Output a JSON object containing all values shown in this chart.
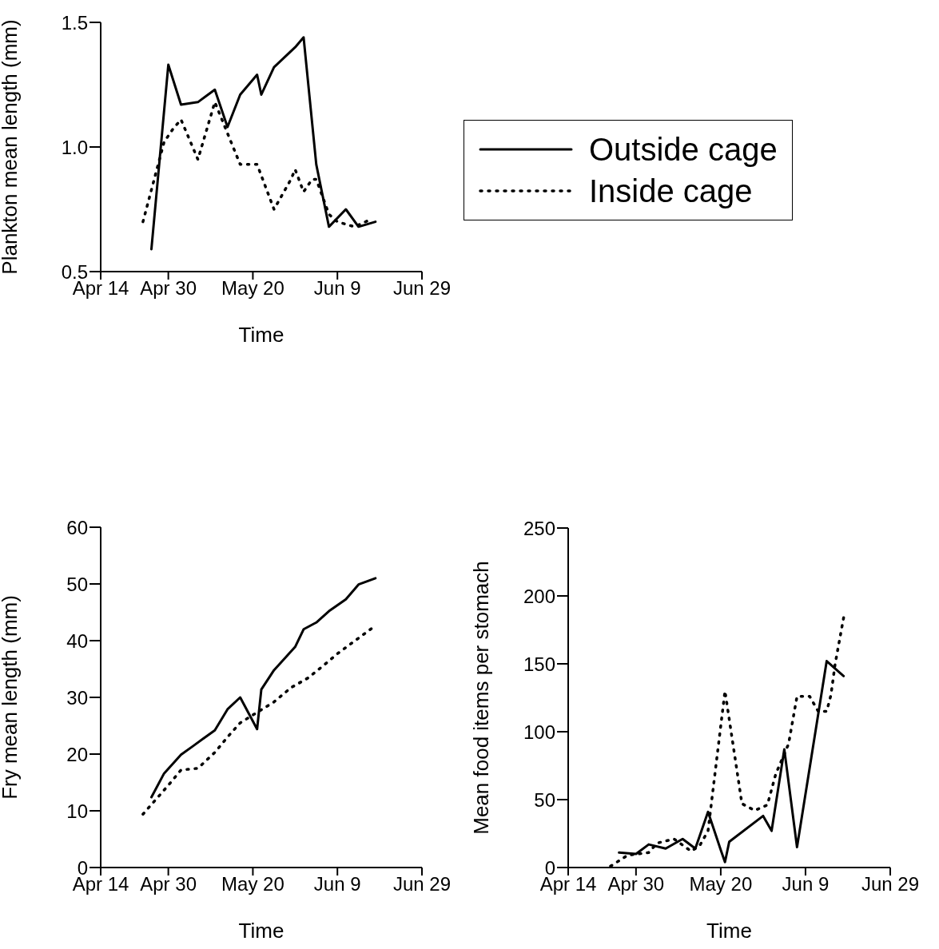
{
  "chart_data": [
    {
      "type": "line",
      "xlabel": "Time",
      "ylabel": "Plankton mean length (mm)",
      "xlim": [
        "--04-14",
        "--06-29"
      ],
      "xticks": [
        {
          "value": "--04-14",
          "label": "Apr 14"
        },
        {
          "value": "--04-30",
          "label": "Apr 30"
        },
        {
          "value": "--05-20",
          "label": "May 20"
        },
        {
          "value": "--06-09",
          "label": "Jun 9"
        },
        {
          "value": "--06-29",
          "label": "Jun 29"
        }
      ],
      "ylim": [
        0.5,
        1.5
      ],
      "yticks": [
        0.5,
        {
          "value": 1,
          "label": "1.0"
        },
        1.5
      ],
      "legend": "right",
      "series": [
        {
          "name": "Outside cage",
          "color": "#000000",
          "line_style": "solid",
          "x": [
            "--04-26",
            "--04-30",
            "--05-03",
            "--05-07",
            "--05-11",
            "--05-14",
            "--05-17",
            "--05-21",
            "--05-22",
            "--05-25",
            "--05-30",
            "--06-01",
            "--06-04",
            "--06-07",
            "--06-11",
            "--06-14",
            "--06-18"
          ],
          "values": [
            0.59,
            1.33,
            1.17,
            1.18,
            1.23,
            1.08,
            1.21,
            1.29,
            1.21,
            1.32,
            1.4,
            1.44,
            0.93,
            0.68,
            0.75,
            0.68,
            0.7
          ]
        },
        {
          "name": "Inside cage",
          "color": "#000000",
          "line_style": "dotted",
          "x": [
            "--04-24",
            "--04-29",
            "--05-01",
            "--05-03",
            "--05-07",
            "--05-11",
            "--05-17",
            "--05-21",
            "--05-25",
            "--05-26",
            "--05-29",
            "--05-30",
            "--06-01",
            "--06-03",
            "--06-04",
            "--06-07",
            "--06-09",
            "--06-13",
            "--06-17"
          ],
          "values": [
            0.7,
            1.02,
            1.07,
            1.11,
            0.95,
            1.18,
            0.93,
            0.93,
            0.75,
            0.78,
            0.87,
            0.91,
            0.82,
            0.87,
            0.87,
            0.73,
            0.7,
            0.68,
            0.71
          ]
        }
      ]
    },
    {
      "type": "line",
      "xlabel": "Time",
      "ylabel": "Fry mean length (mm)",
      "xlim": [
        "--04-14",
        "--06-29"
      ],
      "xticks": [
        {
          "value": "--04-14",
          "label": "Apr 14"
        },
        {
          "value": "--04-30",
          "label": "Apr 30"
        },
        {
          "value": "--05-20",
          "label": "May 20"
        },
        {
          "value": "--06-09",
          "label": "Jun 9"
        },
        {
          "value": "--06-29",
          "label": "Jun 29"
        }
      ],
      "ylim": [
        0,
        60
      ],
      "yticks": [
        0,
        10,
        20,
        30,
        40,
        50,
        60
      ],
      "series": [
        {
          "color": "#000000",
          "line_style": "solid",
          "x": [
            "--04-26",
            "--04-29",
            "--05-03",
            "--05-06",
            "--05-11",
            "--05-14",
            "--05-17",
            "--05-21",
            "--05-22",
            "--05-25",
            "--05-30",
            "--06-01",
            "--06-04",
            "--06-07",
            "--06-11",
            "--06-14",
            "--06-18"
          ],
          "values": [
            12.4,
            16.6,
            19.9,
            21.5,
            24.2,
            27.9,
            30,
            24.4,
            31.4,
            34.8,
            38.9,
            42,
            43.2,
            45.2,
            47.3,
            49.9,
            51
          ]
        },
        {
          "color": "#000000",
          "line_style": "dotted",
          "x": [
            "--04-24",
            "--04-30",
            "--05-03",
            "--05-07",
            "--05-11",
            "--05-14",
            "--05-17",
            "--05-25",
            "--05-29",
            "--06-02",
            "--06-06",
            "--06-09",
            "--06-13",
            "--06-17"
          ],
          "values": [
            9.4,
            14.5,
            17.2,
            17.5,
            20.3,
            23,
            25.5,
            29.2,
            31.7,
            33.4,
            35.8,
            37.7,
            39.9,
            42.1
          ]
        }
      ]
    },
    {
      "type": "line",
      "xlabel": "Time",
      "ylabel": "Mean food items per stomach",
      "xlim": [
        "--04-14",
        "--06-29"
      ],
      "xticks": [
        {
          "value": "--04-14",
          "label": "Apr 14"
        },
        {
          "value": "--04-30",
          "label": "Apr 30"
        },
        {
          "value": "--05-20",
          "label": "May 20"
        },
        {
          "value": "--06-09",
          "label": "Jun 9"
        },
        {
          "value": "--06-29",
          "label": "Jun 29"
        }
      ],
      "ylim": [
        0,
        250
      ],
      "yticks": [
        0,
        50,
        100,
        150,
        200,
        250
      ],
      "series": [
        {
          "color": "#000000",
          "line_style": "solid",
          "x": [
            "--04-26",
            "--04-30",
            "--05-03",
            "--05-07",
            "--05-11",
            "--05-14",
            "--05-17",
            "--05-20",
            "--05-21",
            "--05-22",
            "--05-30",
            "--06-01",
            "--06-04",
            "--06-07",
            "--06-14",
            "--06-18"
          ],
          "values": [
            11,
            10,
            17,
            14,
            21,
            14,
            41,
            13,
            4,
            19,
            38,
            27,
            87,
            15,
            152,
            141
          ]
        },
        {
          "color": "#000000",
          "line_style": "dotted",
          "x": [
            "--04-24",
            "--04-28",
            "--05-03",
            "--05-05",
            "--05-09",
            "--05-13",
            "--05-15",
            "--05-17",
            "--05-21",
            "--05-25",
            "--05-28",
            "--05-31",
            "--06-02",
            "--06-05",
            "--06-07",
            "--06-10",
            "--06-12",
            "--06-14",
            "--06-15",
            "--06-16",
            "--06-18"
          ],
          "values": [
            1,
            9,
            11,
            18,
            21,
            12,
            16,
            27,
            130,
            47,
            42,
            46,
            69,
            91,
            126,
            126,
            115,
            115,
            127,
            150,
            184
          ]
        }
      ]
    }
  ]
}
